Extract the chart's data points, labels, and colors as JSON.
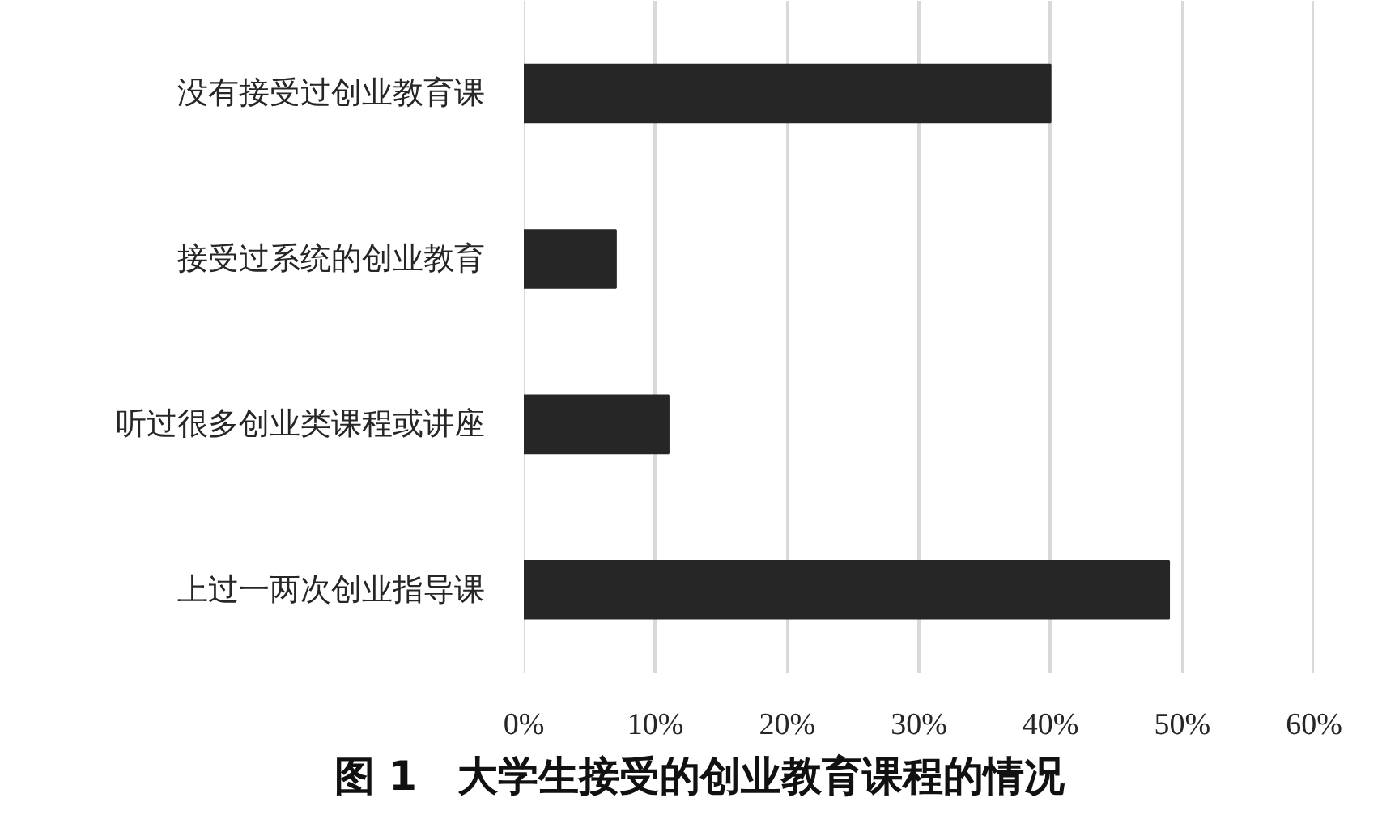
{
  "chart_data": {
    "type": "bar",
    "orientation": "horizontal",
    "title": "图 1　大学生接受的创业教育课程的情况",
    "categories": [
      "没有接受过创业教育课",
      "接受过系统的创业教育",
      "听过很多创业类课程或讲座",
      "上过一两次创业指导课"
    ],
    "values": [
      40,
      7,
      11,
      49
    ],
    "color": "#262626",
    "xlim": [
      0,
      60
    ],
    "xticks": [
      {
        "value": 0,
        "label": "0%"
      },
      {
        "value": 10,
        "label": "10%"
      },
      {
        "value": 20,
        "label": "20%"
      },
      {
        "value": 30,
        "label": "30%"
      },
      {
        "value": 40,
        "label": "40%"
      },
      {
        "value": 50,
        "label": "50%"
      },
      {
        "value": 60,
        "label": "60%"
      }
    ],
    "grid": "x"
  }
}
